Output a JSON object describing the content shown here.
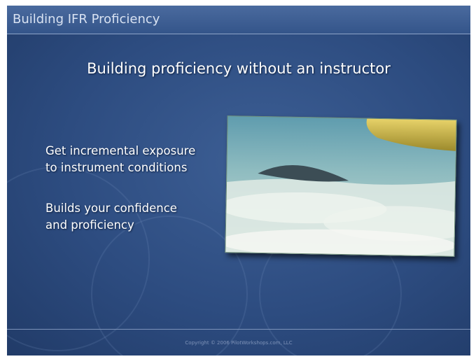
{
  "header": {
    "title": "Building IFR Proficiency"
  },
  "slide": {
    "title": "Building proficiency without an instructor",
    "bullets": [
      {
        "lines": [
          "Get incremental exposure",
          "to instrument conditions"
        ]
      },
      {
        "lines": [
          "Builds your confidence",
          "and proficiency"
        ]
      }
    ]
  },
  "footer": {
    "copyright": "Copyright © 2006 PilotWorkshops.com, LLC"
  }
}
